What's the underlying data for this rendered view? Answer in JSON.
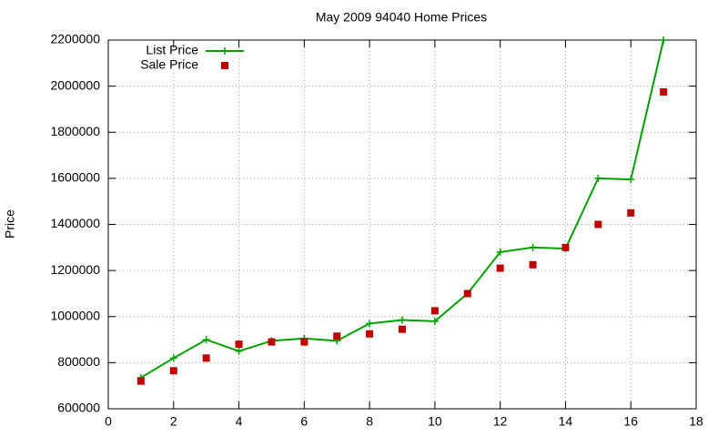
{
  "chart_data": {
    "type": "line",
    "title": "May 2009 94040 Home Prices",
    "y_label": "Price",
    "x": [
      1,
      2,
      3,
      4,
      5,
      6,
      7,
      8,
      9,
      10,
      11,
      12,
      13,
      14,
      15,
      16,
      17
    ],
    "series": [
      {
        "name": "List Price",
        "color": "#00a000",
        "marker": "plus",
        "line": true,
        "values": [
          735000,
          820000,
          900000,
          850000,
          895000,
          905000,
          895000,
          970000,
          985000,
          980000,
          1100000,
          1280000,
          1300000,
          1295000,
          1600000,
          1595000,
          2200000
        ]
      },
      {
        "name": "Sale Price",
        "color": "#c00000",
        "marker": "square",
        "line": false,
        "values": [
          720000,
          765000,
          820000,
          880000,
          890000,
          890000,
          915000,
          925000,
          945000,
          1025000,
          1100000,
          1210000,
          1225000,
          1300000,
          1400000,
          1450000,
          1975000
        ]
      }
    ],
    "xlim": [
      0,
      18
    ],
    "xticks": [
      0,
      2,
      4,
      6,
      8,
      10,
      12,
      14,
      16,
      18
    ],
    "ylim": [
      600000,
      2200000
    ],
    "yticks": [
      600000,
      800000,
      1000000,
      1200000,
      1400000,
      1600000,
      1800000,
      2000000,
      2200000
    ],
    "grid": true,
    "legend": "top-left"
  }
}
